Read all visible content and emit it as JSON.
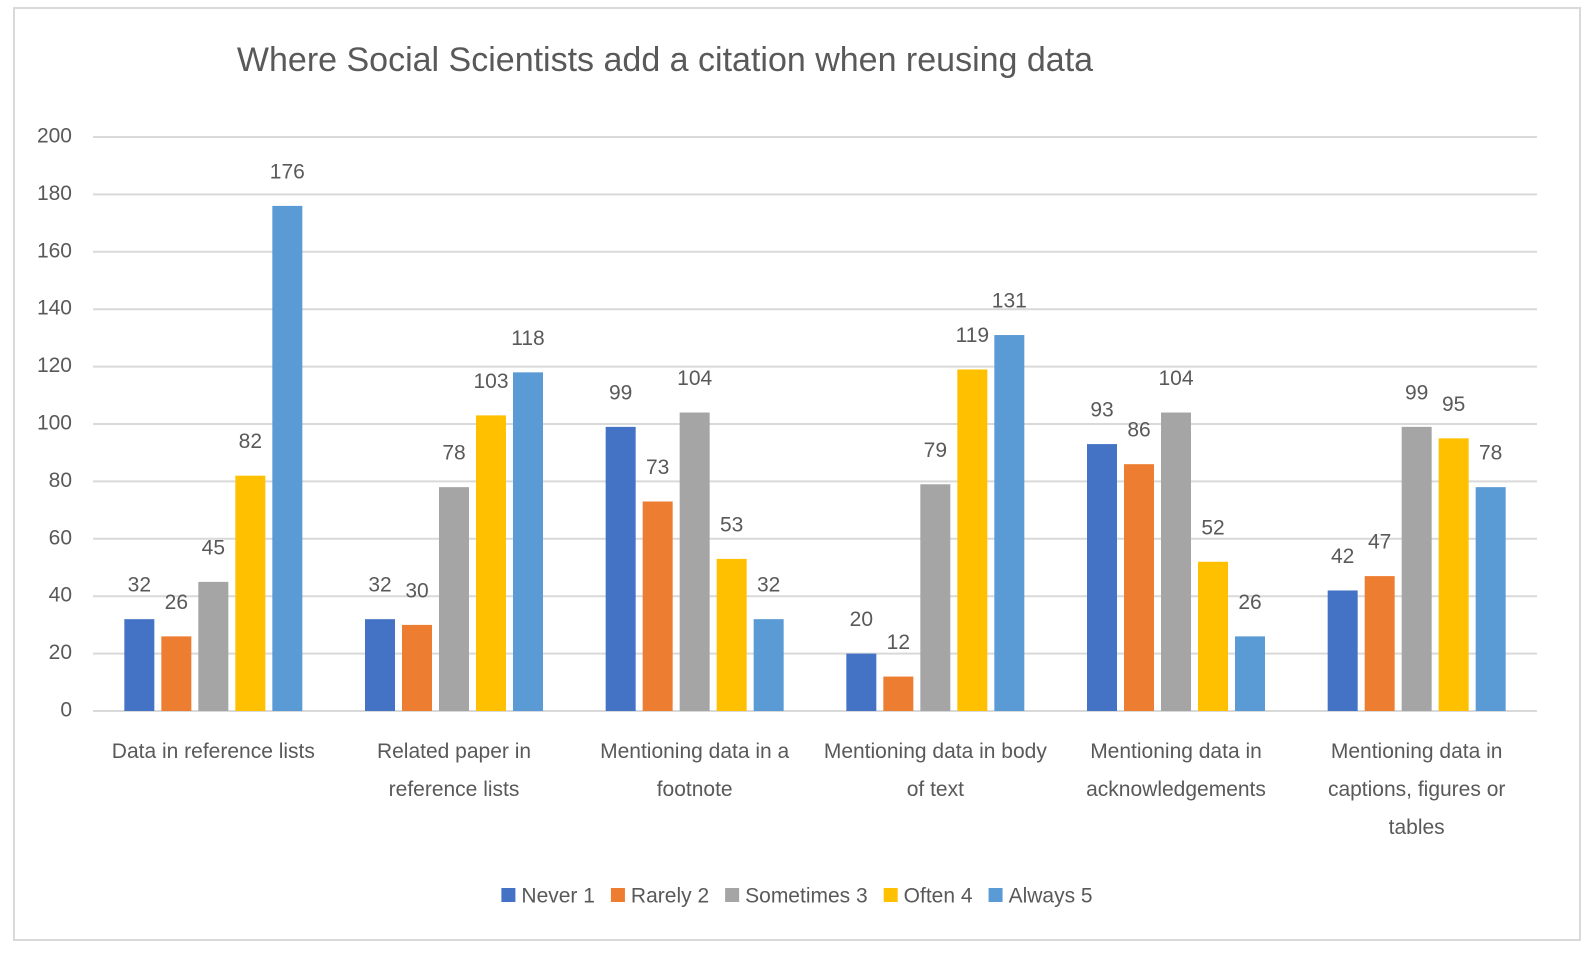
{
  "chart_data": {
    "type": "bar",
    "title": "Where Social Scientists add a citation  when reusing data",
    "categories": [
      "Data in reference lists",
      "Related paper in reference lists",
      "Mentioning data in a footnote",
      "Mentioning data in body of text",
      "Mentioning data in acknowledgements",
      "Mentioning data in captions, figures or tables"
    ],
    "series": [
      {
        "name": "Never 1",
        "color": "#4472c4",
        "values": [
          32,
          32,
          99,
          20,
          93,
          42
        ]
      },
      {
        "name": "Rarely 2",
        "color": "#ed7d31",
        "values": [
          26,
          30,
          73,
          12,
          86,
          47
        ]
      },
      {
        "name": "Sometimes 3",
        "color": "#a5a5a5",
        "values": [
          45,
          78,
          104,
          79,
          104,
          99
        ]
      },
      {
        "name": "Often 4",
        "color": "#ffc000",
        "values": [
          82,
          103,
          53,
          119,
          52,
          95
        ]
      },
      {
        "name": "Always 5",
        "color": "#5b9bd5",
        "values": [
          176,
          118,
          32,
          131,
          26,
          78
        ]
      }
    ],
    "ylim": [
      0,
      200
    ],
    "yticks": [
      0,
      20,
      40,
      60,
      80,
      100,
      120,
      140,
      160,
      180,
      200
    ],
    "grid": true,
    "legend": "bottom"
  }
}
